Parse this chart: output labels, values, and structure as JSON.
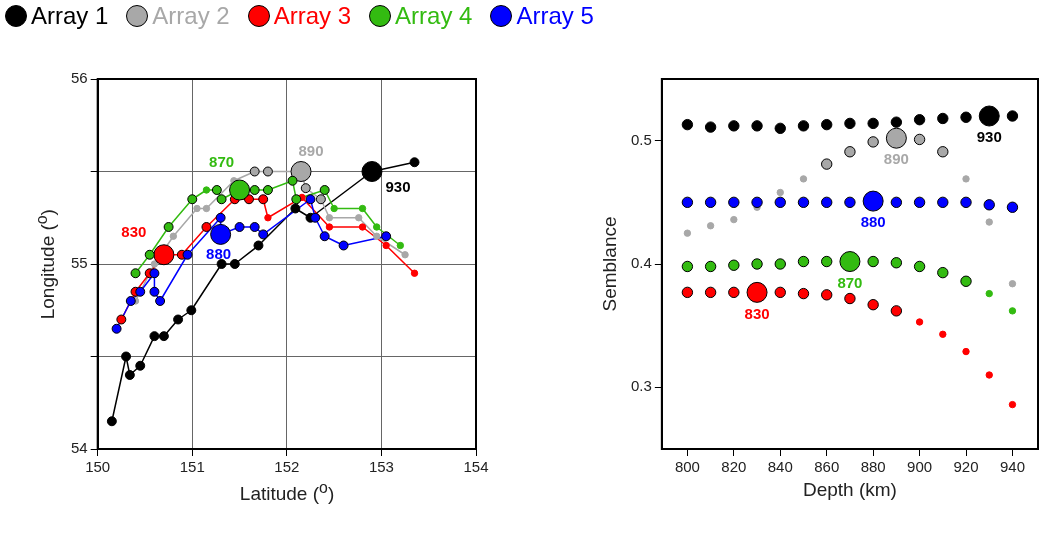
{
  "chart_data": [
    {
      "type": "bubble",
      "xlabel": "Latitude ($^{o}$)",
      "ylabel": "Longitude ($^{o}$)",
      "xlim": [
        150,
        154
      ],
      "ylim": [
        54,
        56
      ],
      "xticks": [
        150,
        151,
        152,
        153,
        154
      ],
      "yticks": [
        54,
        {
          "value": 54.5,
          "label": null
        },
        55,
        {
          "value": 55.5,
          "label": null
        },
        56
      ],
      "grid": true,
      "legend": "top",
      "marker": "circle",
      "series": [
        {
          "type": "line",
          "line_style": "solid",
          "marker": "none",
          "color": "#000000",
          "x": [
            150.15,
            150.3,
            150.34,
            150.45,
            150.6,
            150.7,
            150.85,
            150.99,
            151.31,
            151.45,
            151.7,
            152.09,
            152.25,
            152.9,
            153.35
          ],
          "values": [
            54.15,
            54.5,
            54.4,
            54.45,
            54.61,
            54.61,
            54.7,
            54.75,
            55.0,
            55.0,
            55.1,
            55.3,
            55.25,
            55.5,
            55.55
          ]
        },
        {
          "type": "line",
          "line_style": "solid",
          "marker": "none",
          "color": "#a8a8a8",
          "x": [
            150.4,
            150.6,
            150.8,
            151.05,
            151.15,
            151.44,
            151.66,
            151.8,
            152.15,
            152.2,
            152.36,
            152.45,
            152.76,
            152.95,
            153.25
          ],
          "values": [
            54.8,
            55.0,
            55.15,
            55.3,
            55.3,
            55.45,
            55.5,
            55.5,
            55.5,
            55.41,
            55.35,
            55.25,
            55.25,
            55.15,
            55.05
          ]
        },
        {
          "type": "line",
          "line_style": "solid",
          "marker": "none",
          "color": "#ff0000",
          "x": [
            150.25,
            150.4,
            150.55,
            150.7,
            150.89,
            151.15,
            151.45,
            151.6,
            151.75,
            151.8,
            152.16,
            152.45,
            152.8,
            153.05,
            153.35
          ],
          "values": [
            54.7,
            54.85,
            54.95,
            55.05,
            55.05,
            55.2,
            55.35,
            55.35,
            55.35,
            55.25,
            55.36,
            55.2,
            55.2,
            55.1,
            54.95
          ]
        },
        {
          "type": "line",
          "line_style": "solid",
          "marker": "none",
          "color": "#33bb11",
          "x": [
            150.4,
            150.55,
            150.75,
            151.0,
            151.15,
            151.26,
            151.31,
            151.5,
            151.66,
            151.8,
            152.06,
            152.1,
            152.4,
            152.5,
            152.8,
            152.95,
            153.2
          ],
          "values": [
            54.95,
            55.05,
            55.2,
            55.35,
            55.4,
            55.4,
            55.35,
            55.4,
            55.4,
            55.4,
            55.45,
            55.35,
            55.4,
            55.3,
            55.3,
            55.2,
            55.1
          ]
        },
        {
          "type": "line",
          "line_style": "solid",
          "marker": "none",
          "color": "#0000ff",
          "x": [
            150.2,
            150.35,
            150.45,
            150.6,
            150.6,
            150.66,
            150.95,
            151.3,
            151.3,
            151.5,
            151.66,
            151.75,
            152.25,
            152.3,
            152.4,
            152.6,
            153.05
          ],
          "values": [
            54.65,
            54.8,
            54.85,
            54.95,
            54.85,
            54.8,
            55.05,
            55.25,
            55.16,
            55.2,
            55.2,
            55.16,
            55.35,
            55.25,
            55.15,
            55.1,
            55.15
          ]
        },
        {
          "name": "Array 1",
          "color": "#000000",
          "x": [
            150.15,
            150.3,
            150.34,
            150.45,
            150.6,
            150.7,
            150.85,
            150.99,
            151.31,
            151.45,
            151.7,
            152.09,
            152.25,
            152.9,
            153.35
          ],
          "values": [
            54.15,
            54.5,
            54.4,
            54.45,
            54.61,
            54.61,
            54.7,
            54.75,
            55.0,
            55.0,
            55.1,
            55.3,
            55.25,
            55.5,
            55.55
          ],
          "sizes": [
            0.2,
            0.2,
            0.2,
            0.2,
            0.2,
            0.2,
            0.2,
            0.2,
            0.2,
            0.2,
            0.2,
            0.2,
            0.2,
            1,
            0.2
          ]
        },
        {
          "name": "Array 2",
          "color": "#a8a8a8",
          "x": [
            150.4,
            150.6,
            150.8,
            151.05,
            151.15,
            151.44,
            151.66,
            151.8,
            152.15,
            152.2,
            152.36,
            152.45,
            152.76,
            152.95,
            153.25
          ],
          "values": [
            54.8,
            55.0,
            55.15,
            55.3,
            55.3,
            55.45,
            55.5,
            55.5,
            55.5,
            55.41,
            55.35,
            55.25,
            55.25,
            55.15,
            55.05
          ],
          "sizes": [
            0.06,
            0.06,
            0.06,
            0.06,
            0.06,
            0.06,
            0.2,
            0.2,
            1,
            0.2,
            0.2,
            0.06,
            0.06,
            0.06,
            0.06
          ]
        },
        {
          "name": "Array 3",
          "color": "#ff0000",
          "x": [
            150.25,
            150.4,
            150.55,
            150.7,
            150.89,
            151.15,
            151.45,
            151.6,
            151.75,
            151.8,
            152.16,
            152.45,
            152.8,
            153.05,
            153.35
          ],
          "values": [
            54.7,
            54.85,
            54.95,
            55.05,
            55.05,
            55.2,
            55.35,
            55.35,
            55.35,
            55.25,
            55.36,
            55.2,
            55.2,
            55.1,
            54.95
          ],
          "sizes": [
            0.2,
            0.2,
            0.2,
            1,
            0.2,
            0.2,
            0.2,
            0.2,
            0.2,
            0.06,
            0.06,
            0.06,
            0.06,
            0.06,
            0.06
          ]
        },
        {
          "name": "Array 4",
          "color": "#33bb11",
          "x": [
            150.4,
            150.55,
            150.75,
            151.0,
            151.15,
            151.26,
            151.31,
            151.5,
            151.66,
            151.8,
            152.06,
            152.1,
            152.4,
            152.5,
            152.8,
            152.95,
            153.2
          ],
          "values": [
            54.95,
            55.05,
            55.2,
            55.35,
            55.4,
            55.4,
            55.35,
            55.4,
            55.4,
            55.4,
            55.45,
            55.35,
            55.4,
            55.3,
            55.3,
            55.2,
            55.1
          ],
          "sizes": [
            0.2,
            0.2,
            0.2,
            0.2,
            0.06,
            0.2,
            0.2,
            1,
            0.2,
            0.2,
            0.2,
            0.2,
            0.2,
            0.06,
            0.06,
            0.06,
            0.06
          ]
        },
        {
          "name": "Array 5",
          "color": "#0000ff",
          "x": [
            150.2,
            150.35,
            150.45,
            150.6,
            150.6,
            150.66,
            150.95,
            151.3,
            151.3,
            151.5,
            151.66,
            151.75,
            152.25,
            152.3,
            152.4,
            152.6,
            153.05
          ],
          "values": [
            54.65,
            54.8,
            54.85,
            54.95,
            54.85,
            54.8,
            55.05,
            55.25,
            55.16,
            55.2,
            55.2,
            55.16,
            55.35,
            55.25,
            55.15,
            55.1,
            55.15
          ],
          "sizes": [
            0.2,
            0.2,
            0.2,
            0.2,
            0.2,
            0.2,
            0.2,
            0.2,
            1,
            0.2,
            0.2,
            0.2,
            0.2,
            0.2,
            0.2,
            0.2,
            0.2
          ]
        }
      ],
      "annotations": [
        {
          "text": "870",
          "x": 151.5,
          "y": 55.4
        },
        {
          "text": "830",
          "x": 150.7,
          "y": 55.05
        },
        {
          "text": "880",
          "x": 151.3,
          "y": 55.16
        },
        {
          "text": "890",
          "x": 152.15,
          "y": 55.5
        },
        {
          "text": "930",
          "x": 152.9,
          "y": 55.5
        }
      ]
    },
    {
      "type": "bubble",
      "xlabel": "Depth (km)",
      "ylabel": "Semblance",
      "xlim": [
        789,
        951
      ],
      "ylim": [
        0.25,
        0.55
      ],
      "xticks": [
        800,
        820,
        840,
        860,
        880,
        900,
        920,
        940
      ],
      "yticks": [
        0.3,
        0.4,
        0.5
      ],
      "marker": "circle",
      "x": [
        800,
        810,
        820,
        830,
        840,
        850,
        860,
        870,
        880,
        890,
        900,
        910,
        920,
        930,
        940
      ],
      "series": [
        {
          "color": "#000000",
          "values": [
            0.513,
            0.511,
            0.512,
            0.512,
            0.51,
            0.512,
            0.513,
            0.514,
            0.514,
            0.515,
            0.517,
            0.518,
            0.519,
            0.52,
            0.52
          ],
          "sizes": [
            0.27,
            0.27,
            0.27,
            0.27,
            0.27,
            0.27,
            0.27,
            0.27,
            0.27,
            0.27,
            0.27,
            0.27,
            0.27,
            1,
            0.27
          ]
        },
        {
          "color": "#a8a8a8",
          "values": [
            0.425,
            0.431,
            0.436,
            0.446,
            0.458,
            0.469,
            0.481,
            0.491,
            0.499,
            0.502,
            0.501,
            0.491,
            0.469,
            0.434,
            0.384
          ],
          "sizes": [
            0.06,
            0.06,
            0.06,
            0.06,
            0.06,
            0.06,
            0.27,
            0.27,
            0.27,
            1,
            0.27,
            0.27,
            0.06,
            0.06,
            0.06
          ]
        },
        {
          "color": "#ff0000",
          "values": [
            0.377,
            0.377,
            0.377,
            0.377,
            0.377,
            0.376,
            0.375,
            0.372,
            0.367,
            0.362,
            0.353,
            0.343,
            0.329,
            0.31,
            0.286
          ],
          "sizes": [
            0.27,
            0.27,
            0.27,
            1,
            0.27,
            0.27,
            0.27,
            0.27,
            0.27,
            0.27,
            0.06,
            0.06,
            0.06,
            0.06,
            0.06
          ]
        },
        {
          "color": "#33bb11",
          "values": [
            0.398,
            0.398,
            0.399,
            0.4,
            0.4,
            0.402,
            0.402,
            0.402,
            0.402,
            0.401,
            0.398,
            0.393,
            0.386,
            0.376,
            0.362
          ],
          "sizes": [
            0.27,
            0.27,
            0.27,
            0.27,
            0.27,
            0.27,
            0.27,
            1,
            0.27,
            0.27,
            0.27,
            0.27,
            0.27,
            0.06,
            0.06
          ]
        },
        {
          "color": "#0000ff",
          "values": [
            0.45,
            0.45,
            0.45,
            0.45,
            0.45,
            0.45,
            0.45,
            0.45,
            0.451,
            0.45,
            0.45,
            0.45,
            0.45,
            0.448,
            0.446
          ],
          "sizes": [
            0.27,
            0.27,
            0.27,
            0.27,
            0.27,
            0.27,
            0.27,
            0.27,
            1,
            0.27,
            0.27,
            0.27,
            0.27,
            0.27,
            0.27
          ]
        }
      ],
      "annotations": [
        {
          "text": "930",
          "x": 930,
          "y": 0.52
        },
        {
          "text": "890",
          "x": 890,
          "y": 0.502
        },
        {
          "text": "880",
          "x": 880,
          "y": 0.451
        },
        {
          "text": "870",
          "x": 870,
          "y": 0.402
        },
        {
          "text": "830",
          "x": 830,
          "y": 0.377
        }
      ]
    }
  ]
}
